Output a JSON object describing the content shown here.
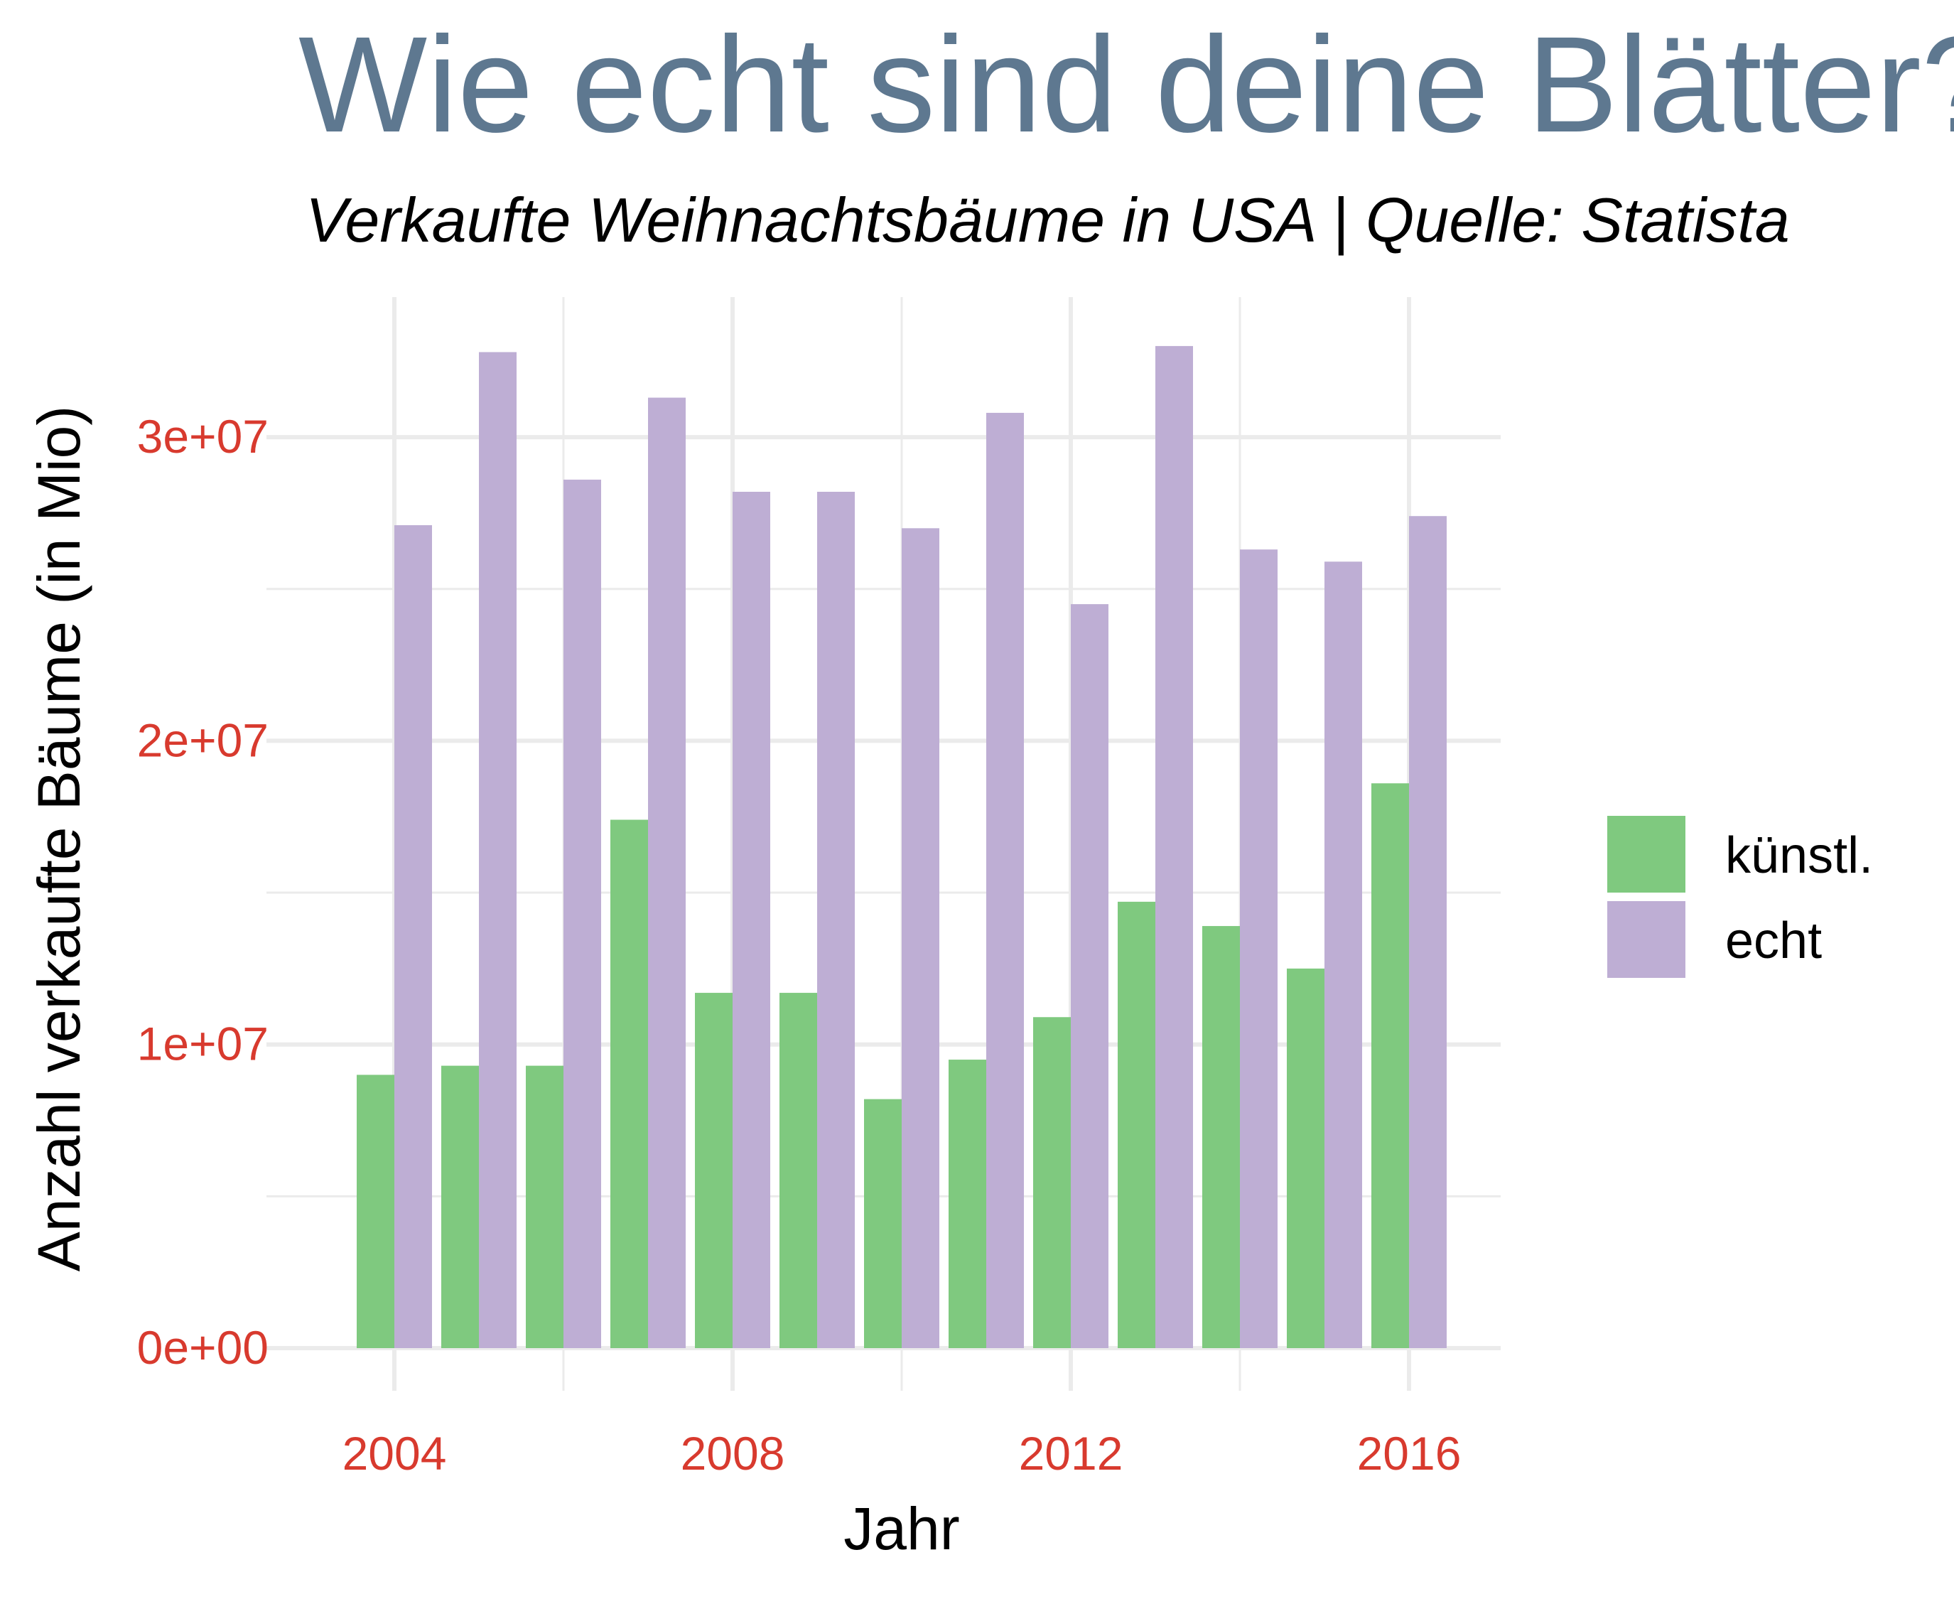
{
  "chart_data": {
    "type": "bar",
    "title": "Wie echt sind deine Blätter?",
    "subtitle": "Verkaufte Weihnachtsbäume in USA | Quelle: Statista",
    "xlabel": "Jahr",
    "ylabel": "Anzahl verkaufte Bäume (in Mio)",
    "x": [
      2004,
      2005,
      2006,
      2007,
      2008,
      2009,
      2010,
      2011,
      2012,
      2013,
      2014,
      2015,
      2016
    ],
    "x_ticks": [
      "2004",
      "2008",
      "2012",
      "2016"
    ],
    "y_ticks": [
      "0e+00",
      "1e+07",
      "2e+07",
      "3e+07"
    ],
    "ylim": [
      0,
      33000000
    ],
    "xlim": [
      2003.2,
      2016.8
    ],
    "grid": true,
    "legend_position": "right",
    "series": [
      {
        "name": "künstl.",
        "color": "#7FC97F",
        "values": [
          9000000,
          9300000,
          9300000,
          17400000,
          11700000,
          11700000,
          8200000,
          9500000,
          10900000,
          14700000,
          13900000,
          12500000,
          18600000
        ]
      },
      {
        "name": "echt",
        "color": "#BEAED4",
        "values": [
          27100000,
          32800000,
          28600000,
          31300000,
          28200000,
          28200000,
          27000000,
          30800000,
          24500000,
          33000000,
          26300000,
          25900000,
          27400000
        ]
      }
    ]
  },
  "style": {
    "title_color": "#5E7890",
    "tick_label_color": "#D83A2E",
    "grid_color": "#EBEBEB",
    "text_color": "#000000"
  }
}
